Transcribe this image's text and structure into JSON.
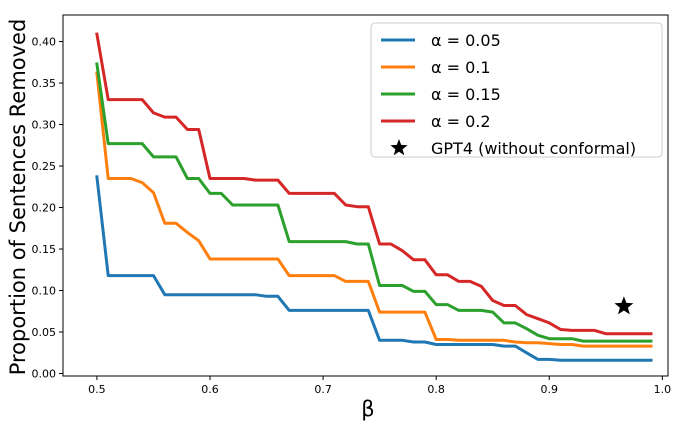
{
  "chart_data": {
    "type": "line",
    "title": "",
    "xlabel": "β",
    "ylabel": "Proportion of Sentences Removed",
    "xlim": [
      0.47,
      1.005
    ],
    "ylim": [
      -0.003,
      0.432
    ],
    "xticks": [
      "0.5",
      "0.6",
      "0.7",
      "0.8",
      "0.9",
      "1.0"
    ],
    "yticks": [
      "0.00",
      "0.05",
      "0.10",
      "0.15",
      "0.20",
      "0.25",
      "0.30",
      "0.35",
      "0.40"
    ],
    "legend_position": "top-right",
    "series": [
      {
        "name": "α = 0.05",
        "color": "#1f77b4",
        "x": [
          0.5,
          0.51,
          0.52,
          0.53,
          0.54,
          0.55,
          0.56,
          0.57,
          0.58,
          0.59,
          0.6,
          0.61,
          0.62,
          0.63,
          0.64,
          0.65,
          0.66,
          0.67,
          0.68,
          0.69,
          0.7,
          0.71,
          0.72,
          0.73,
          0.74,
          0.75,
          0.76,
          0.77,
          0.78,
          0.79,
          0.8,
          0.81,
          0.82,
          0.83,
          0.84,
          0.85,
          0.86,
          0.87,
          0.88,
          0.89,
          0.9,
          0.91,
          0.92,
          0.93,
          0.94,
          0.95,
          0.96,
          0.97,
          0.98,
          0.99
        ],
        "y": [
          0.237,
          0.118,
          0.118,
          0.118,
          0.118,
          0.118,
          0.095,
          0.095,
          0.095,
          0.095,
          0.095,
          0.095,
          0.095,
          0.095,
          0.095,
          0.093,
          0.093,
          0.076,
          0.076,
          0.076,
          0.076,
          0.076,
          0.076,
          0.076,
          0.076,
          0.04,
          0.04,
          0.04,
          0.038,
          0.038,
          0.035,
          0.035,
          0.035,
          0.035,
          0.035,
          0.035,
          0.033,
          0.033,
          0.025,
          0.017,
          0.017,
          0.016,
          0.016,
          0.016,
          0.016,
          0.016,
          0.016,
          0.016,
          0.016,
          0.016
        ]
      },
      {
        "name": "α = 0.1",
        "color": "#ff7f0e",
        "x": [
          0.5,
          0.51,
          0.52,
          0.53,
          0.54,
          0.55,
          0.56,
          0.57,
          0.58,
          0.59,
          0.6,
          0.61,
          0.62,
          0.63,
          0.64,
          0.65,
          0.66,
          0.67,
          0.68,
          0.69,
          0.7,
          0.71,
          0.72,
          0.73,
          0.74,
          0.75,
          0.76,
          0.77,
          0.78,
          0.79,
          0.8,
          0.81,
          0.82,
          0.83,
          0.84,
          0.85,
          0.86,
          0.87,
          0.88,
          0.89,
          0.9,
          0.91,
          0.92,
          0.93,
          0.94,
          0.95,
          0.96,
          0.97,
          0.98,
          0.99
        ],
        "y": [
          0.362,
          0.235,
          0.235,
          0.235,
          0.23,
          0.218,
          0.181,
          0.181,
          0.17,
          0.16,
          0.138,
          0.138,
          0.138,
          0.138,
          0.138,
          0.138,
          0.138,
          0.118,
          0.118,
          0.118,
          0.118,
          0.118,
          0.111,
          0.111,
          0.111,
          0.074,
          0.074,
          0.074,
          0.074,
          0.074,
          0.041,
          0.041,
          0.04,
          0.04,
          0.04,
          0.04,
          0.04,
          0.038,
          0.037,
          0.037,
          0.036,
          0.035,
          0.035,
          0.033,
          0.033,
          0.033,
          0.033,
          0.033,
          0.033,
          0.033
        ]
      },
      {
        "name": "α = 0.15",
        "color": "#2ca02c",
        "x": [
          0.5,
          0.51,
          0.52,
          0.53,
          0.54,
          0.55,
          0.56,
          0.57,
          0.58,
          0.59,
          0.6,
          0.61,
          0.62,
          0.63,
          0.64,
          0.65,
          0.66,
          0.67,
          0.68,
          0.69,
          0.7,
          0.71,
          0.72,
          0.73,
          0.74,
          0.75,
          0.76,
          0.77,
          0.78,
          0.79,
          0.8,
          0.81,
          0.82,
          0.83,
          0.84,
          0.85,
          0.86,
          0.87,
          0.88,
          0.89,
          0.9,
          0.91,
          0.92,
          0.93,
          0.94,
          0.95,
          0.96,
          0.97,
          0.98,
          0.99
        ],
        "y": [
          0.373,
          0.277,
          0.277,
          0.277,
          0.277,
          0.261,
          0.261,
          0.261,
          0.235,
          0.235,
          0.217,
          0.217,
          0.203,
          0.203,
          0.203,
          0.203,
          0.203,
          0.159,
          0.159,
          0.159,
          0.159,
          0.159,
          0.159,
          0.156,
          0.156,
          0.106,
          0.106,
          0.106,
          0.099,
          0.099,
          0.083,
          0.083,
          0.076,
          0.076,
          0.076,
          0.074,
          0.061,
          0.061,
          0.054,
          0.046,
          0.042,
          0.042,
          0.042,
          0.039,
          0.039,
          0.039,
          0.039,
          0.039,
          0.039,
          0.039
        ]
      },
      {
        "name": "α = 0.2",
        "color": "#d62728",
        "x": [
          0.5,
          0.51,
          0.52,
          0.53,
          0.54,
          0.55,
          0.56,
          0.57,
          0.58,
          0.59,
          0.6,
          0.61,
          0.62,
          0.63,
          0.64,
          0.65,
          0.66,
          0.67,
          0.68,
          0.69,
          0.7,
          0.71,
          0.72,
          0.73,
          0.74,
          0.75,
          0.76,
          0.77,
          0.78,
          0.79,
          0.8,
          0.81,
          0.82,
          0.83,
          0.84,
          0.85,
          0.86,
          0.87,
          0.88,
          0.89,
          0.9,
          0.91,
          0.92,
          0.93,
          0.94,
          0.95,
          0.96,
          0.97,
          0.98,
          0.99
        ],
        "y": [
          0.409,
          0.33,
          0.33,
          0.33,
          0.33,
          0.314,
          0.309,
          0.309,
          0.294,
          0.294,
          0.235,
          0.235,
          0.235,
          0.235,
          0.233,
          0.233,
          0.233,
          0.217,
          0.217,
          0.217,
          0.217,
          0.217,
          0.203,
          0.201,
          0.201,
          0.156,
          0.156,
          0.148,
          0.137,
          0.137,
          0.119,
          0.119,
          0.111,
          0.111,
          0.105,
          0.088,
          0.082,
          0.082,
          0.071,
          0.066,
          0.061,
          0.053,
          0.052,
          0.052,
          0.052,
          0.048,
          0.048,
          0.048,
          0.048,
          0.048
        ]
      }
    ],
    "points": [
      {
        "name": "GPT4 (without conformal)",
        "marker": "star",
        "color": "#000000",
        "x": 0.966,
        "y": 0.081
      }
    ]
  }
}
